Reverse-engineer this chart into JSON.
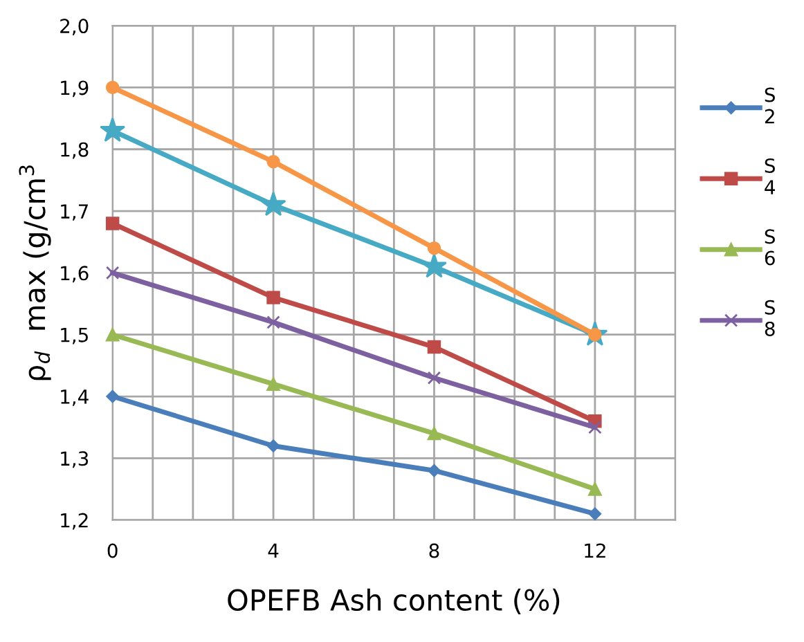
{
  "chart_data": {
    "type": "line",
    "xlabel": "OPEFB Ash content (%)",
    "ylabel": "ρ$_{d}$  max (g/cm$^{3}$",
    "x": [
      0,
      4,
      8,
      12
    ],
    "xlim": [
      0,
      14
    ],
    "xticks": [
      0,
      {
        "value": 1,
        "label": null
      },
      {
        "value": 2,
        "label": null
      },
      {
        "value": 3,
        "label": null
      },
      4,
      {
        "value": 5,
        "label": null
      },
      {
        "value": 6,
        "label": null
      },
      {
        "value": 7,
        "label": null
      },
      8,
      {
        "value": 9,
        "label": null
      },
      {
        "value": 10,
        "label": null
      },
      {
        "value": 11,
        "label": null
      },
      12,
      {
        "value": 13,
        "label": null
      },
      {
        "value": 14,
        "label": null
      }
    ],
    "ylim": [
      1.2,
      2.0
    ],
    "yticks": [
      {
        "value": 1.2,
        "label": "1,2"
      },
      {
        "value": 1.3,
        "label": "1,3"
      },
      {
        "value": 1.4,
        "label": "1,4"
      },
      {
        "value": 1.5,
        "label": "1,5"
      },
      {
        "value": 1.6,
        "label": "1,6"
      },
      {
        "value": 1.7,
        "label": "1,7"
      },
      {
        "value": 1.8,
        "label": "1,8"
      },
      {
        "value": 1.9,
        "label": "1,9"
      },
      {
        "value": 2.0,
        "label": "2,0"
      }
    ],
    "grid": true,
    "legend": "right",
    "line_style": "solid",
    "series": [
      {
        "name": "S 2",
        "color": "#4a7ebb",
        "marker": "diamond",
        "values": [
          1.4,
          1.32,
          1.28,
          1.21
        ]
      },
      {
        "name": "S 4",
        "color": "#be4b48",
        "marker": "square",
        "values": [
          1.68,
          1.56,
          1.48,
          1.36
        ]
      },
      {
        "name": "S 6",
        "color": "#98b954",
        "marker": "triangle",
        "values": [
          1.5,
          1.42,
          1.34,
          1.25
        ]
      },
      {
        "name": "S 8",
        "color": "#7d60a0",
        "marker": "cross",
        "values": [
          1.6,
          1.52,
          1.43,
          1.35
        ]
      },
      {
        "color": "#46aac5",
        "marker": "star",
        "values": [
          1.83,
          1.71,
          1.61,
          1.5
        ]
      },
      {
        "color": "#f79646",
        "marker": "circle",
        "values": [
          1.9,
          1.78,
          1.64,
          1.5
        ]
      }
    ]
  }
}
